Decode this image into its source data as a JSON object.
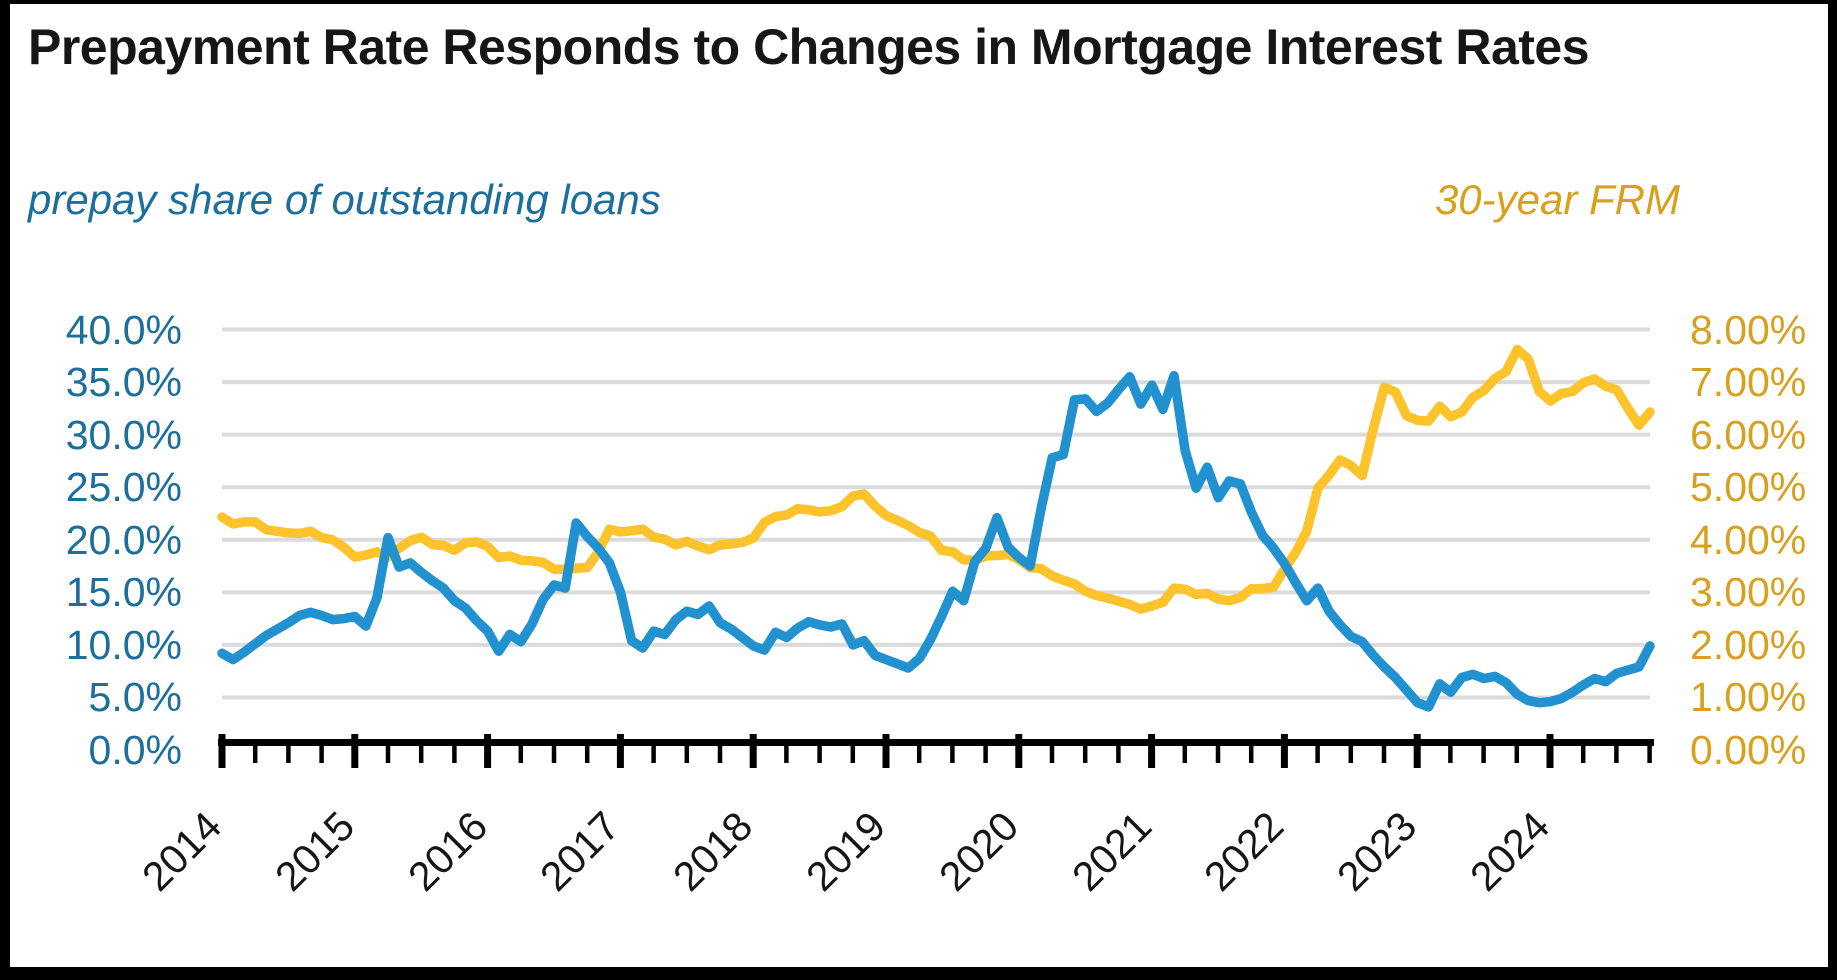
{
  "title": "Prepayment Rate Responds to Changes in Mortgage Interest Rates",
  "background": "#FFFFFF",
  "frame_color": "#000000",
  "gridline_color": "#DBDBDB",
  "axis_line_color": "#000000",
  "left_axis": {
    "label": "prepay share of outstanding loans",
    "text_color": "#1C6E9B",
    "tick_labels": [
      "40.0%",
      "35.0%",
      "30.0%",
      "25.0%",
      "20.0%",
      "15.0%",
      "10.0%",
      "5.0%",
      "0.0%"
    ],
    "min": 0,
    "max": 40,
    "step": 5
  },
  "right_axis": {
    "label": "30-year FRM",
    "text_color": "#D7A11F",
    "tick_labels": [
      "8.00%",
      "7.00%",
      "6.00%",
      "5.00%",
      "4.00%",
      "3.00%",
      "2.00%",
      "1.00%",
      "0.00%"
    ],
    "min": 0,
    "max": 8,
    "step": 1
  },
  "x_axis": {
    "tick_labels": [
      "2014",
      "2015",
      "2016",
      "2017",
      "2018",
      "2019",
      "2020",
      "2021",
      "2022",
      "2023",
      "2024"
    ],
    "minor_ticks_per_year": 4
  },
  "chart_data": {
    "type": "line",
    "x_start": "2014-01",
    "x_end": "2024-10",
    "frequency": "monthly",
    "grid": "horizontal",
    "left_ylim": [
      0,
      40
    ],
    "right_ylim": [
      0,
      8
    ],
    "legend_position": "color-coded axis subtitles",
    "series": [
      {
        "name": "prepay share of outstanding loans",
        "axis": "left",
        "color": "#2191D0",
        "unit": "%",
        "values": [
          9.2,
          8.6,
          9.3,
          10.1,
          10.9,
          11.5,
          12.1,
          12.8,
          13.1,
          12.8,
          12.4,
          12.5,
          12.7,
          11.8,
          14.5,
          20.2,
          17.4,
          17.8,
          16.9,
          16.1,
          15.4,
          14.2,
          13.5,
          12.3,
          11.3,
          9.4,
          11.0,
          10.3,
          12.0,
          14.3,
          15.7,
          15.4,
          21.6,
          20.3,
          19.2,
          17.8,
          15.0,
          10.4,
          9.7,
          11.3,
          11.0,
          12.4,
          13.2,
          12.9,
          13.7,
          12.1,
          11.5,
          10.7,
          9.9,
          9.5,
          11.2,
          10.7,
          11.6,
          12.2,
          11.9,
          11.7,
          12.0,
          10.0,
          10.4,
          9.0,
          8.6,
          8.2,
          7.8,
          8.7,
          10.5,
          12.7,
          15.1,
          14.2,
          17.9,
          19.2,
          22.1,
          19.3,
          18.3,
          17.5,
          23.0,
          27.8,
          28.1,
          33.3,
          33.4,
          32.2,
          33.0,
          34.3,
          35.5,
          32.9,
          34.7,
          32.4,
          35.6,
          28.5,
          24.9,
          26.9,
          24.0,
          25.6,
          25.3,
          22.6,
          20.4,
          19.2,
          17.7,
          15.9,
          14.2,
          15.4,
          13.2,
          11.9,
          10.8,
          10.3,
          9.0,
          7.9,
          6.9,
          5.7,
          4.5,
          4.1,
          6.3,
          5.5,
          6.9,
          7.2,
          6.8,
          7.0,
          6.4,
          5.3,
          4.7,
          4.5,
          4.6,
          4.9,
          5.5,
          6.2,
          6.8,
          6.5,
          7.3,
          7.6,
          7.9,
          9.9
        ]
      },
      {
        "name": "30-year FRM",
        "axis": "right",
        "color": "#FCC32D",
        "unit": "%",
        "values": [
          4.43,
          4.3,
          4.34,
          4.34,
          4.19,
          4.16,
          4.13,
          4.12,
          4.16,
          4.04,
          4.0,
          3.86,
          3.67,
          3.71,
          3.77,
          3.67,
          3.84,
          3.98,
          4.05,
          3.91,
          3.89,
          3.8,
          3.94,
          3.96,
          3.87,
          3.66,
          3.69,
          3.61,
          3.6,
          3.57,
          3.44,
          3.44,
          3.46,
          3.47,
          3.77,
          4.2,
          4.15,
          4.17,
          4.2,
          4.05,
          4.01,
          3.9,
          3.97,
          3.88,
          3.81,
          3.9,
          3.92,
          3.95,
          4.03,
          4.33,
          4.44,
          4.47,
          4.59,
          4.57,
          4.53,
          4.55,
          4.63,
          4.83,
          4.87,
          4.64,
          4.46,
          4.37,
          4.27,
          4.14,
          4.07,
          3.8,
          3.77,
          3.62,
          3.61,
          3.69,
          3.7,
          3.72,
          3.62,
          3.47,
          3.45,
          3.31,
          3.23,
          3.16,
          3.02,
          2.94,
          2.89,
          2.83,
          2.77,
          2.68,
          2.74,
          2.81,
          3.08,
          3.06,
          2.96,
          2.98,
          2.87,
          2.84,
          2.9,
          3.07,
          3.07,
          3.1,
          3.45,
          3.76,
          4.17,
          4.98,
          5.23,
          5.52,
          5.41,
          5.22,
          6.11,
          6.9,
          6.81,
          6.36,
          6.27,
          6.26,
          6.54,
          6.34,
          6.43,
          6.71,
          6.84,
          7.07,
          7.2,
          7.62,
          7.44,
          6.82,
          6.64,
          6.78,
          6.82,
          6.99,
          7.06,
          6.92,
          6.85,
          6.5,
          6.18,
          6.43
        ]
      }
    ]
  }
}
